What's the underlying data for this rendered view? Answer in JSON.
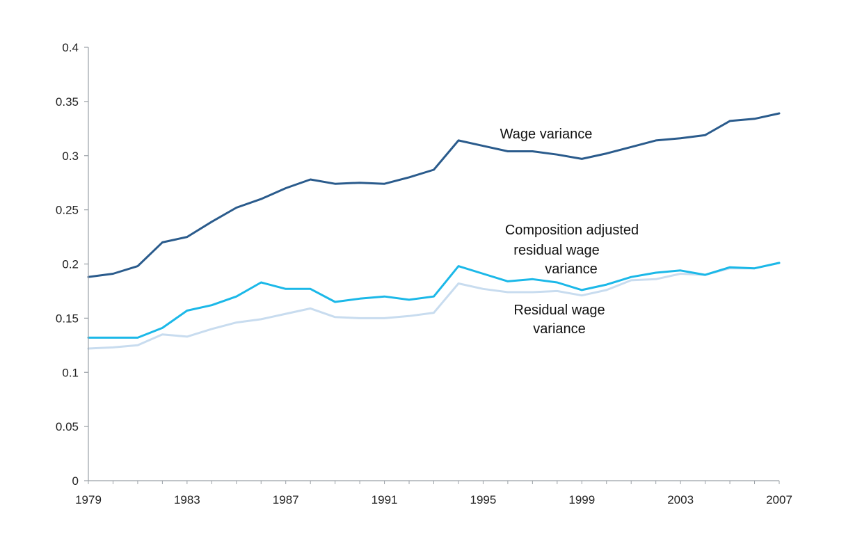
{
  "chart_data": {
    "type": "line",
    "title": "",
    "xlabel": "",
    "ylabel": "",
    "x": [
      1979,
      1980,
      1981,
      1982,
      1983,
      1984,
      1985,
      1986,
      1987,
      1988,
      1989,
      1990,
      1991,
      1992,
      1993,
      1994,
      1995,
      1996,
      1997,
      1998,
      1999,
      2000,
      2001,
      2002,
      2003,
      2004,
      2005,
      2006,
      2007
    ],
    "xticks": [
      "1979",
      "1983",
      "1987",
      "1991",
      "1995",
      "1999",
      "2003",
      "2007"
    ],
    "yticks": [
      "0",
      "0.05",
      "0.1",
      "0.15",
      "0.2",
      "0.25",
      "0.3",
      "0.35",
      "0.4"
    ],
    "xlim": [
      1979,
      2007
    ],
    "ylim": [
      0,
      0.4
    ],
    "grid": false,
    "series": [
      {
        "name": "Wage variance",
        "color": "#2a5b8c",
        "values": [
          0.188,
          0.191,
          0.198,
          0.22,
          0.225,
          0.239,
          0.252,
          0.26,
          0.27,
          0.278,
          0.274,
          0.275,
          0.274,
          0.28,
          0.287,
          0.314,
          0.309,
          0.304,
          0.304,
          0.301,
          0.297,
          0.302,
          0.308,
          0.314,
          0.316,
          0.319,
          0.332,
          0.334,
          0.339
        ]
      },
      {
        "name": "Composition adjusted residual wage variance",
        "color": "#1bb8e8",
        "values": [
          0.132,
          0.132,
          0.132,
          0.141,
          0.157,
          0.162,
          0.17,
          0.183,
          0.177,
          0.177,
          0.165,
          0.168,
          0.17,
          0.167,
          0.17,
          0.198,
          0.191,
          0.184,
          0.186,
          0.183,
          0.176,
          0.181,
          0.188,
          0.192,
          0.194,
          0.19,
          0.197,
          0.196,
          0.201
        ]
      },
      {
        "name": "Residual wage variance",
        "color": "#c8dcef",
        "values": [
          0.122,
          0.123,
          0.125,
          0.135,
          0.133,
          0.14,
          0.146,
          0.149,
          0.154,
          0.159,
          0.151,
          0.15,
          0.15,
          0.152,
          0.155,
          0.182,
          0.177,
          0.174,
          0.174,
          0.175,
          0.171,
          0.176,
          0.185,
          0.186,
          0.191,
          0.19,
          0.196,
          0.196,
          0.201
        ]
      }
    ],
    "annotations": [
      {
        "series": 0,
        "lines": [
          "Wage variance"
        ]
      },
      {
        "series": 1,
        "lines": [
          "Composition adjusted",
          "residual wage",
          "variance"
        ]
      },
      {
        "series": 2,
        "lines": [
          "Residual wage",
          "variance"
        ]
      }
    ]
  }
}
